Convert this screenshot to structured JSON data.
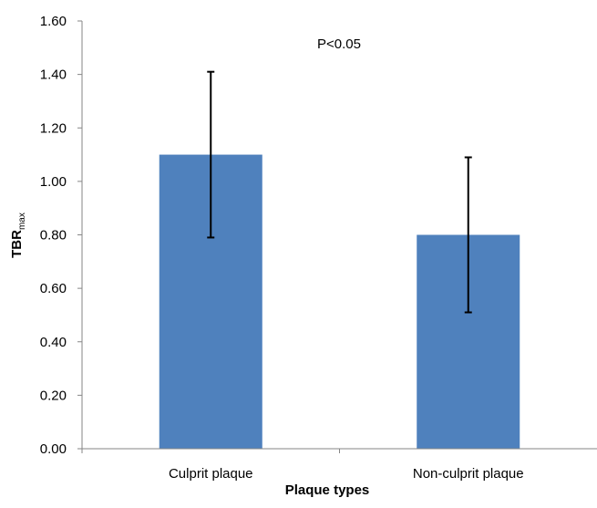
{
  "chart_data": {
    "type": "bar",
    "categories": [
      "Culprit plaque",
      "Non-culprit plaque"
    ],
    "values": [
      1.1,
      0.8
    ],
    "error": [
      0.31,
      0.29
    ],
    "xlabel": "Plaque types",
    "ylabel": "TBR",
    "ylabel_subscript": "max",
    "ylim": [
      0,
      1.6
    ],
    "ytick_step": 0.2,
    "yticks": [
      "0.00",
      "0.20",
      "0.40",
      "0.60",
      "0.80",
      "1.00",
      "1.20",
      "1.40",
      "1.60"
    ],
    "annotations": [
      "P<0.05"
    ],
    "grid": false,
    "legend": "none",
    "bar_color": "#4F81BD",
    "axis_color": "#868686"
  }
}
